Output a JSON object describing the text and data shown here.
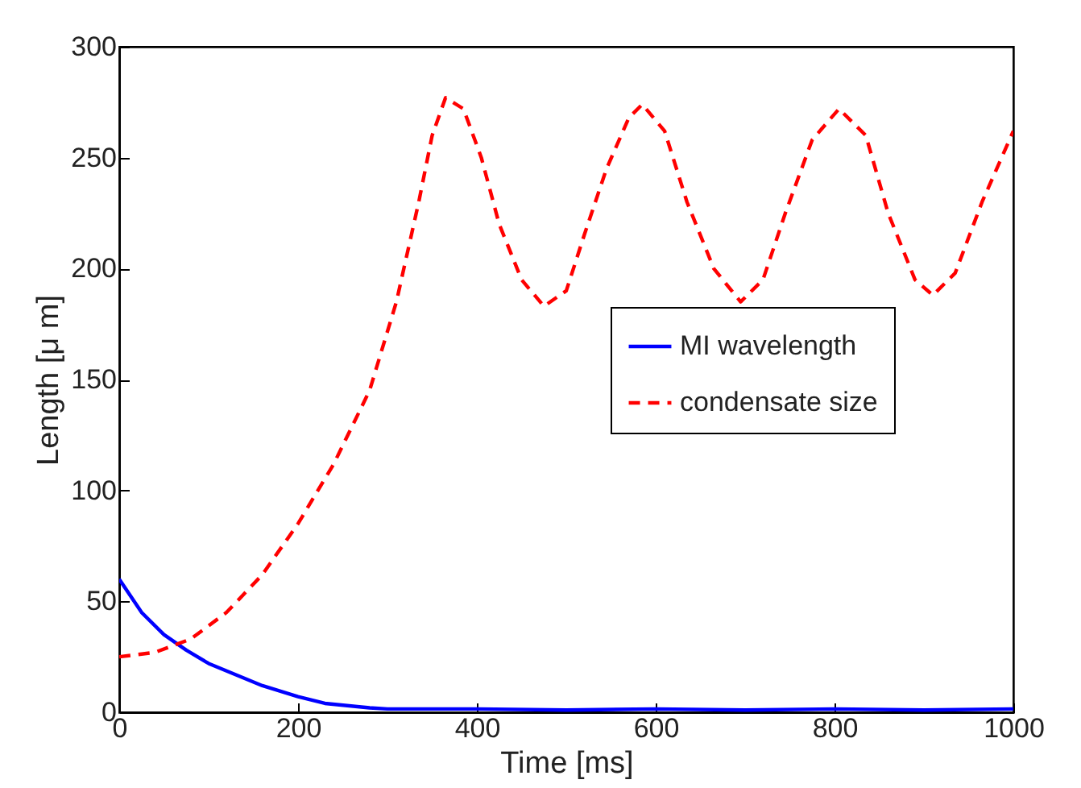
{
  "chart_data": {
    "type": "line",
    "xlabel": "Time [ms]",
    "ylabel": "Length [μ m]",
    "xlim": [
      0,
      1000
    ],
    "ylim": [
      0,
      300
    ],
    "xticks": [
      0,
      200,
      400,
      600,
      800,
      1000
    ],
    "yticks": [
      0,
      50,
      100,
      150,
      200,
      250,
      300
    ],
    "grid": false,
    "legend": "right",
    "marker": "none",
    "series": [
      {
        "name": "MI wavelength",
        "color": "#0000ff",
        "line_style": "solid",
        "x": [
          0,
          25,
          50,
          75,
          100,
          130,
          160,
          200,
          230,
          280,
          300,
          400,
          500,
          600,
          700,
          800,
          900,
          1000
        ],
        "values": [
          60,
          45,
          35,
          28,
          22,
          17,
          12,
          7,
          4,
          2,
          1.5,
          1.5,
          1,
          1.5,
          1,
          1.5,
          1,
          1.5
        ]
      },
      {
        "name": "condensate size",
        "color": "#ff0000",
        "line_style": "dashed",
        "x": [
          0,
          40,
          80,
          120,
          160,
          200,
          240,
          280,
          310,
          335,
          350,
          365,
          385,
          405,
          425,
          450,
          475,
          500,
          520,
          545,
          570,
          585,
          610,
          635,
          665,
          695,
          720,
          745,
          775,
          805,
          835,
          860,
          890,
          910,
          935,
          965,
          1000
        ],
        "values": [
          25,
          27,
          33,
          45,
          62,
          85,
          112,
          145,
          185,
          230,
          260,
          277,
          272,
          250,
          220,
          195,
          183,
          190,
          215,
          245,
          268,
          274,
          262,
          230,
          200,
          185,
          195,
          225,
          258,
          272,
          260,
          225,
          195,
          188,
          198,
          230,
          262
        ]
      }
    ]
  }
}
